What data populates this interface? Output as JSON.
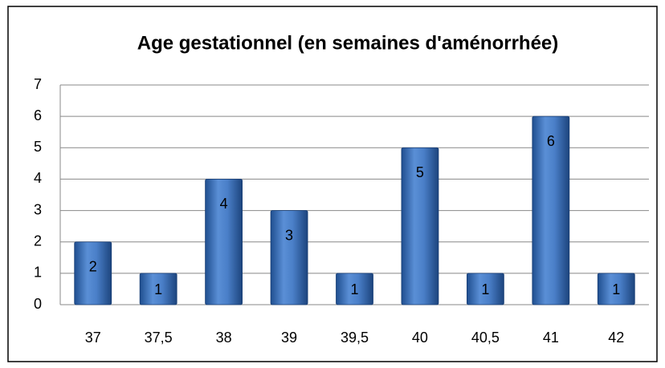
{
  "chart_data": {
    "type": "bar",
    "title": "Age gestationnel (en semaines d'aménorrhée)",
    "categories": [
      "37",
      "37,5",
      "38",
      "39",
      "39,5",
      "40",
      "40,5",
      "41",
      "42"
    ],
    "values": [
      2,
      1,
      4,
      3,
      1,
      5,
      1,
      6,
      1
    ],
    "color": "#3f6fb5",
    "ylim": [
      0,
      7
    ],
    "yticks": [
      0,
      1,
      2,
      3,
      4,
      5,
      6,
      7
    ],
    "grid": true
  }
}
